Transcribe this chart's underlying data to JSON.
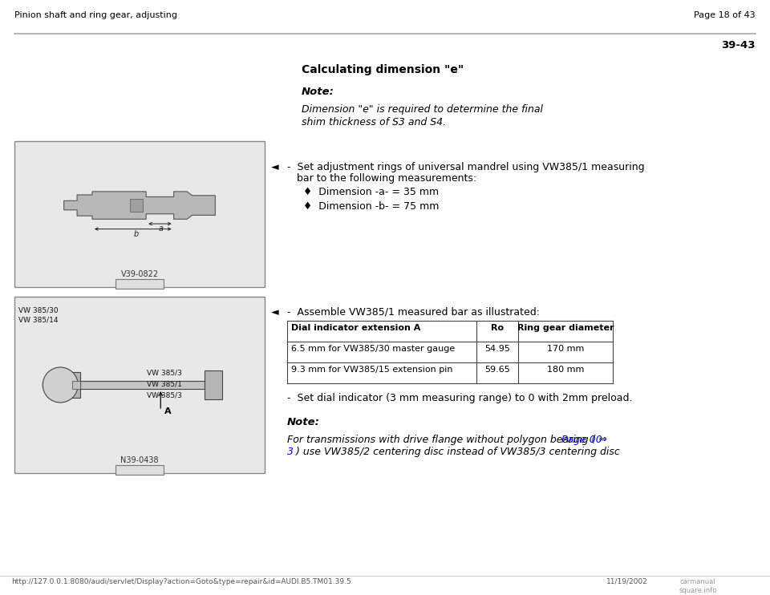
{
  "bg_color": "#ffffff",
  "header_left": "Pinion shaft and ring gear, adjusting",
  "header_right": "Page 18 of 43",
  "section_number": "39-43",
  "title": "Calculating dimension \"e\"",
  "note_label": "Note:",
  "note_italic_line1": "Dimension \"e\" is required to determine the final",
  "note_italic_line2": "shim thickness of S3 and S4.",
  "section1_line1": "-  Set adjustment rings of universal mandrel using VW385/1 measuring",
  "section1_line2": "   bar to the following measurements:",
  "bullet1": "♦  Dimension -a- = 35 mm",
  "bullet2": "♦  Dimension -b- = 75 mm",
  "section2_line1": "-  Assemble VW385/1 measured bar as illustrated:",
  "table_headers": [
    "Dial indicator extension A",
    "Ro",
    "Ring gear diameter"
  ],
  "table_row1": [
    "6.5 mm for VW385/30 master gauge",
    "54.95",
    "170 mm"
  ],
  "table_row2": [
    "9.3 mm for VW385/15 extension pin",
    "59.65",
    "180 mm"
  ],
  "set_dial": "-  Set dial indicator (3 mm measuring range) to 0 with 2mm preload.",
  "note2_label": "Note:",
  "note2_line1_black": "For transmissions with drive flange without polygon bearing ( ⇒ ",
  "note2_line1_blue": "Page 00-",
  "note2_line2_blue": "3",
  "note2_line2_black": " ) use VW385/2 centering disc instead of VW385/3 centering disc",
  "footer_url": "http://127.0.0.1:8080/audi/servlet/Display?action=Goto&type=repair&id=AUDI.B5.TM01.39.5",
  "footer_date": "11/19/2002",
  "footer_logo": "carmanual\nsquare.info",
  "image1_label": "V39-0822",
  "image2_label": "N39-0438",
  "header_sep_color": "#aaaaaa",
  "table_border_color": "#444444",
  "text_color": "#000000",
  "link_color": "#0000ee",
  "img_bg": "#e8e8e8",
  "img_border": "#888888"
}
